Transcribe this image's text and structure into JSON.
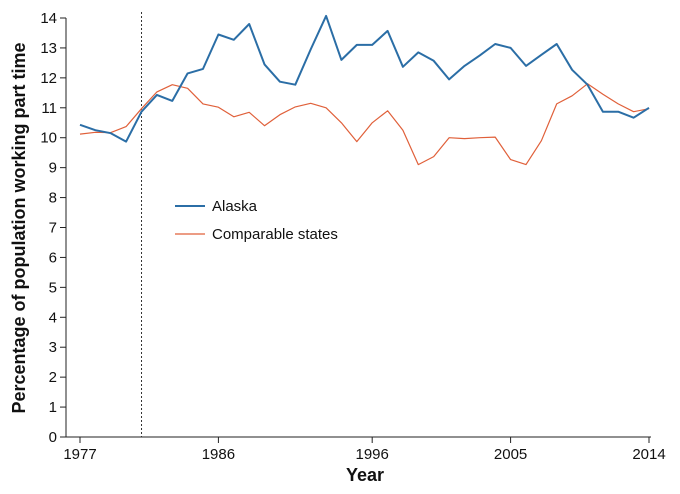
{
  "chart_data": {
    "type": "line",
    "title": "",
    "xlabel": "Year",
    "ylabel": "Percentage of population working part time",
    "xlim": [
      1977,
      2014
    ],
    "ylim": [
      0,
      14
    ],
    "xticks": [
      1977,
      1986,
      1996,
      2005,
      2014
    ],
    "yticks": [
      0,
      1,
      2,
      3,
      4,
      5,
      6,
      7,
      8,
      9,
      10,
      11,
      12,
      13,
      14
    ],
    "reference_line_x": 1981,
    "legend_position": "left-middle",
    "x": [
      1977,
      1978,
      1979,
      1980,
      1981,
      1982,
      1983,
      1984,
      1985,
      1986,
      1987,
      1988,
      1989,
      1990,
      1991,
      1992,
      1993,
      1994,
      1995,
      1996,
      1997,
      1998,
      1999,
      2000,
      2001,
      2002,
      2003,
      2004,
      2005,
      2006,
      2007,
      2008,
      2009,
      2010,
      2011,
      2012,
      2013,
      2014
    ],
    "series": [
      {
        "name": "Alaska",
        "color": "#2b6ea6",
        "values": [
          10.43,
          10.25,
          10.15,
          9.87,
          10.87,
          11.43,
          11.23,
          12.15,
          12.3,
          13.45,
          13.27,
          13.8,
          12.45,
          11.87,
          11.77,
          12.95,
          14.07,
          12.6,
          13.1,
          13.1,
          13.57,
          12.37,
          12.85,
          12.57,
          11.95,
          12.4,
          12.75,
          13.13,
          13.0,
          12.4,
          12.77,
          13.13,
          12.27,
          11.77,
          10.87,
          10.87,
          10.67,
          11.0
        ]
      },
      {
        "name": "Comparable states",
        "color": "#e0603a",
        "values": [
          10.12,
          10.18,
          10.17,
          10.37,
          10.97,
          11.53,
          11.77,
          11.65,
          11.13,
          11.02,
          10.7,
          10.85,
          10.4,
          10.77,
          11.03,
          11.15,
          11.0,
          10.5,
          9.87,
          10.5,
          10.9,
          10.25,
          9.1,
          9.37,
          10.0,
          9.97,
          10.0,
          10.02,
          9.27,
          9.1,
          9.9,
          11.13,
          11.4,
          11.8,
          11.45,
          11.13,
          10.87,
          10.97
        ]
      }
    ]
  }
}
